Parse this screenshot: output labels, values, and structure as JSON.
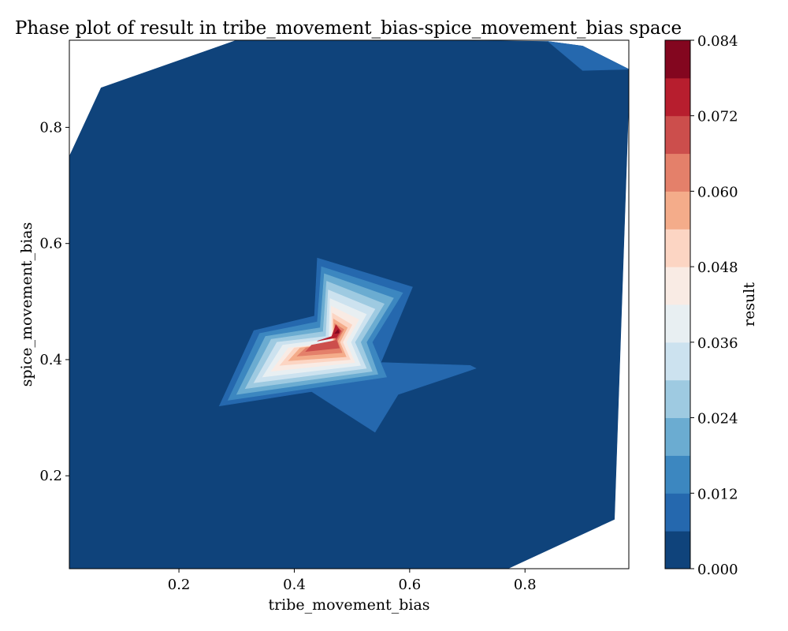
{
  "chart_data": {
    "type": "contour",
    "title": "Phase plot of result in tribe_movement_bias-spice_movement_bias space",
    "xlabel": "tribe_movement_bias",
    "ylabel": "spice_movement_bias",
    "xlim": [
      0.01,
      0.98
    ],
    "ylim": [
      0.04,
      0.95
    ],
    "xticks": [
      0.2,
      0.4,
      0.6,
      0.8
    ],
    "xtick_labels": [
      "0.2",
      "0.4",
      "0.6",
      "0.8"
    ],
    "yticks": [
      0.2,
      0.4,
      0.6,
      0.8
    ],
    "ytick_labels": [
      "0.2",
      "0.4",
      "0.6",
      "0.8"
    ],
    "grid": false,
    "colormap": "RdBu_r",
    "colorbar": {
      "label": "result",
      "min": 0.0,
      "max": 0.084,
      "ticks": [
        0.0,
        0.012,
        0.024,
        0.036,
        0.048,
        0.06,
        0.072,
        0.084
      ],
      "tick_labels": [
        "0.000",
        "0.012",
        "0.024",
        "0.036",
        "0.048",
        "0.060",
        "0.072",
        "0.084"
      ],
      "level_colors": [
        "#0f437b",
        "#2568ae",
        "#3c87c0",
        "#6bacd1",
        "#9ecae1",
        "#cce2ef",
        "#e8eff2",
        "#f9ebe4",
        "#fcd5c3",
        "#f4ac8a",
        "#e4806a",
        "#cc4e4c",
        "#b71e2e",
        "#83061f"
      ]
    },
    "regions": [
      {
        "level": 0,
        "points": [
          [
            0.01,
            0.75
          ],
          [
            0.065,
            0.868
          ],
          [
            0.3,
            0.95
          ],
          [
            0.65,
            0.95
          ],
          [
            0.84,
            0.948
          ],
          [
            0.9,
            0.94
          ],
          [
            0.98,
            0.9
          ],
          [
            0.98,
            0.85
          ],
          [
            0.955,
            0.125
          ],
          [
            0.77,
            0.04
          ],
          [
            0.01,
            0.04
          ]
        ]
      },
      {
        "level": 1,
        "points": [
          [
            0.84,
            0.948
          ],
          [
            0.9,
            0.94
          ],
          [
            0.98,
            0.9
          ],
          [
            0.9,
            0.898
          ]
        ]
      },
      {
        "level": 1,
        "points": [
          [
            0.27,
            0.32
          ],
          [
            0.33,
            0.45
          ],
          [
            0.435,
            0.475
          ],
          [
            0.44,
            0.575
          ],
          [
            0.605,
            0.525
          ],
          [
            0.55,
            0.395
          ],
          [
            0.705,
            0.39
          ],
          [
            0.715,
            0.385
          ],
          [
            0.7,
            0.38
          ],
          [
            0.58,
            0.34
          ],
          [
            0.54,
            0.275
          ],
          [
            0.43,
            0.345
          ]
        ]
      },
      {
        "level": 2,
        "points": [
          [
            0.285,
            0.33
          ],
          [
            0.34,
            0.445
          ],
          [
            0.44,
            0.465
          ],
          [
            0.447,
            0.56
          ],
          [
            0.588,
            0.515
          ],
          [
            0.535,
            0.43
          ],
          [
            0.56,
            0.37
          ]
        ]
      },
      {
        "level": 3,
        "points": [
          [
            0.3,
            0.34
          ],
          [
            0.35,
            0.44
          ],
          [
            0.445,
            0.455
          ],
          [
            0.452,
            0.548
          ],
          [
            0.572,
            0.506
          ],
          [
            0.525,
            0.43
          ],
          [
            0.545,
            0.375
          ]
        ]
      },
      {
        "level": 4,
        "points": [
          [
            0.315,
            0.35
          ],
          [
            0.36,
            0.435
          ],
          [
            0.45,
            0.448
          ],
          [
            0.456,
            0.535
          ],
          [
            0.556,
            0.496
          ],
          [
            0.515,
            0.43
          ],
          [
            0.535,
            0.38
          ]
        ]
      },
      {
        "level": 5,
        "points": [
          [
            0.33,
            0.36
          ],
          [
            0.37,
            0.43
          ],
          [
            0.455,
            0.44
          ],
          [
            0.459,
            0.52
          ],
          [
            0.54,
            0.487
          ],
          [
            0.505,
            0.43
          ],
          [
            0.525,
            0.385
          ]
        ]
      },
      {
        "level": 6,
        "points": [
          [
            0.345,
            0.37
          ],
          [
            0.38,
            0.425
          ],
          [
            0.46,
            0.435
          ],
          [
            0.462,
            0.505
          ],
          [
            0.525,
            0.478
          ],
          [
            0.498,
            0.43
          ],
          [
            0.515,
            0.39
          ]
        ]
      },
      {
        "level": 7,
        "points": [
          [
            0.36,
            0.38
          ],
          [
            0.39,
            0.42
          ],
          [
            0.464,
            0.43
          ],
          [
            0.464,
            0.492
          ],
          [
            0.512,
            0.469
          ],
          [
            0.49,
            0.43
          ],
          [
            0.505,
            0.395
          ]
        ]
      },
      {
        "level": 8,
        "points": [
          [
            0.375,
            0.39
          ],
          [
            0.4,
            0.42
          ],
          [
            0.466,
            0.428
          ],
          [
            0.466,
            0.48
          ],
          [
            0.5,
            0.46
          ],
          [
            0.484,
            0.43
          ],
          [
            0.497,
            0.4
          ]
        ]
      },
      {
        "level": 9,
        "points": [
          [
            0.39,
            0.398
          ],
          [
            0.41,
            0.42
          ],
          [
            0.468,
            0.428
          ],
          [
            0.468,
            0.47
          ],
          [
            0.492,
            0.455
          ],
          [
            0.479,
            0.43
          ],
          [
            0.49,
            0.405
          ]
        ]
      },
      {
        "level": 10,
        "points": [
          [
            0.405,
            0.406
          ],
          [
            0.42,
            0.42
          ],
          [
            0.47,
            0.43
          ],
          [
            0.47,
            0.462
          ],
          [
            0.486,
            0.452
          ],
          [
            0.475,
            0.432
          ],
          [
            0.483,
            0.412
          ]
        ]
      },
      {
        "level": 11,
        "points": [
          [
            0.42,
            0.414
          ],
          [
            0.43,
            0.425
          ],
          [
            0.472,
            0.433
          ],
          [
            0.472,
            0.455
          ],
          [
            0.482,
            0.449
          ],
          [
            0.473,
            0.434
          ],
          [
            0.478,
            0.42
          ]
        ]
      },
      {
        "level": 12,
        "points": [
          [
            0.44,
            0.432
          ],
          [
            0.465,
            0.44
          ],
          [
            0.472,
            0.46
          ],
          [
            0.48,
            0.45
          ],
          [
            0.473,
            0.438
          ]
        ]
      },
      {
        "level": 13,
        "points": [
          [
            0.47,
            0.445
          ],
          [
            0.476,
            0.452
          ],
          [
            0.478,
            0.446
          ]
        ]
      }
    ]
  }
}
